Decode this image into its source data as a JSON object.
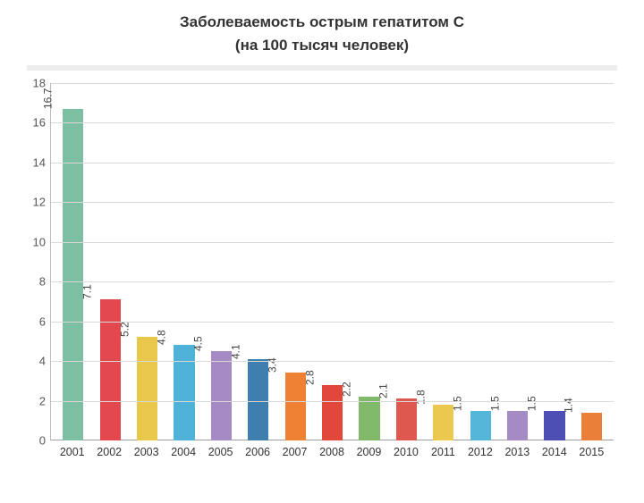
{
  "chart": {
    "type": "bar",
    "title_line1": "Заболеваемость острым гепатитом С",
    "title_line2": "(на 100 тысяч человек)",
    "title_fontsize": 17,
    "title_color": "#333333",
    "background_color": "#ffffff",
    "divider_color": "#ececec",
    "axis_color": "#bdbdbd",
    "baseline_color": "#9e9e9e",
    "grid_color": "#d9d9d9",
    "label_color": "#333333",
    "ytick_color": "#555555",
    "value_label_color": "#444444",
    "label_fontsize": 13,
    "value_fontsize": 12,
    "ylim": [
      0,
      18
    ],
    "ytick_step": 2,
    "bar_width": 0.56,
    "categories": [
      "2001",
      "2002",
      "2003",
      "2004",
      "2005",
      "2006",
      "2007",
      "2008",
      "2009",
      "2010",
      "2011",
      "2012",
      "2013",
      "2014",
      "2015"
    ],
    "values": [
      16.7,
      7.1,
      5.2,
      4.8,
      4.5,
      4.1,
      3.4,
      2.8,
      2.2,
      2.1,
      1.8,
      1.5,
      1.5,
      1.5,
      1.4
    ],
    "bar_colors": [
      "#7cbfa2",
      "#e2484d",
      "#e9c74a",
      "#4fb3d9",
      "#a58ac6",
      "#3f7fb0",
      "#ee8134",
      "#e1483b",
      "#80b96a",
      "#de5850",
      "#ebc94f",
      "#55b6d9",
      "#a58ac6",
      "#4d4fb4",
      "#ea7f3a"
    ]
  }
}
